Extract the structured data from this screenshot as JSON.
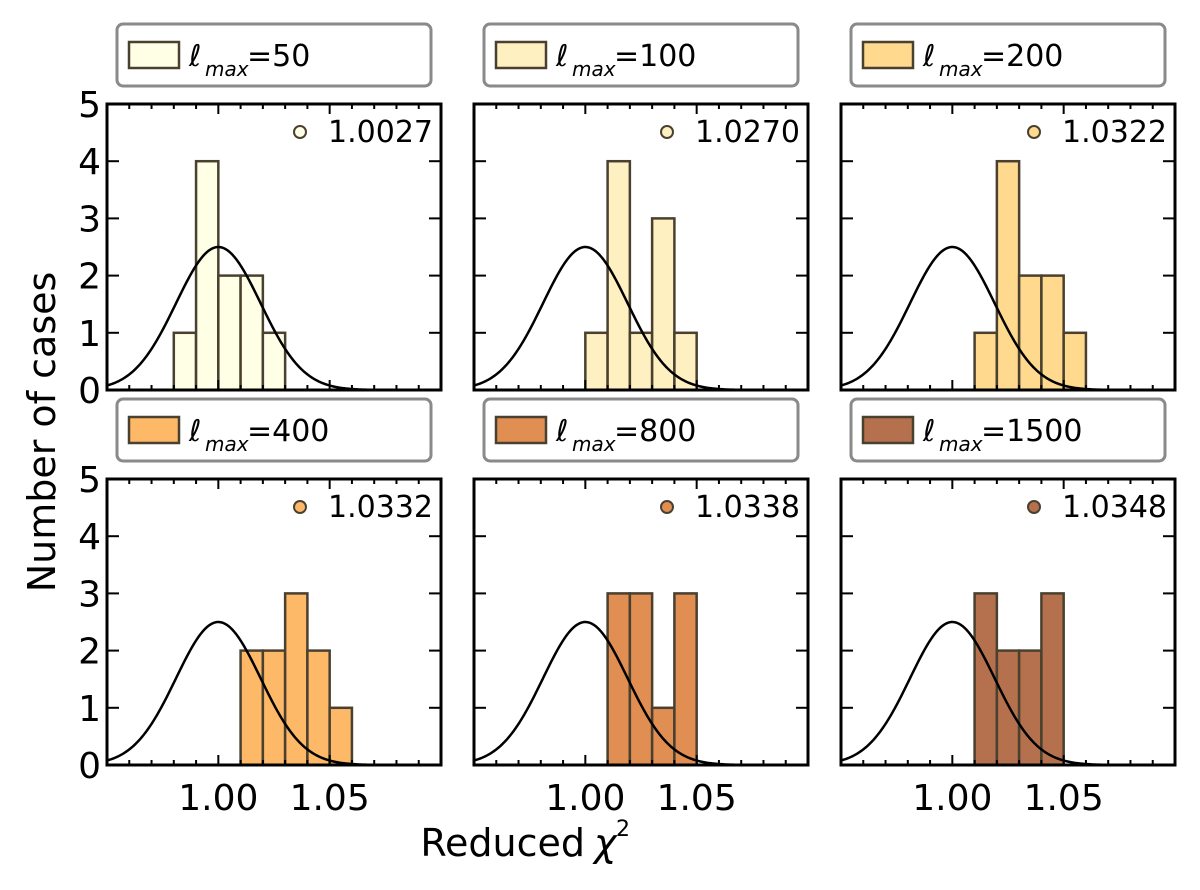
{
  "chart_data": {
    "type": "histogram-grid",
    "xlabel": "Reduced",
    "xlabel_symbol": "χ",
    "xlabel_power": "2",
    "ylabel": "Number of cases",
    "xlim": [
      0.95,
      1.1
    ],
    "ylim": [
      0,
      5
    ],
    "xticks": [
      "1.00",
      "1.05"
    ],
    "xtick_values": [
      1.0,
      1.05
    ],
    "yticks": [
      "0",
      "1",
      "2",
      "3",
      "4",
      "5"
    ],
    "bin_width": 0.01,
    "legend_symbol": "ℓ",
    "legend_sub": "max",
    "gaussian": {
      "mean": 1.0,
      "peak": 2.5,
      "sigma": 0.019
    },
    "panels": [
      {
        "label": "=50",
        "mean": "1.0027",
        "color": "#FFFFE5",
        "bins": [
          [
            0.98,
            1
          ],
          [
            0.99,
            4
          ],
          [
            1.0,
            2
          ],
          [
            1.01,
            2
          ],
          [
            1.02,
            1
          ]
        ]
      },
      {
        "label": "=100",
        "mean": "1.0270",
        "color": "#FEF0C0",
        "bins": [
          [
            1.0,
            1
          ],
          [
            1.01,
            4
          ],
          [
            1.02,
            1
          ],
          [
            1.03,
            3
          ],
          [
            1.04,
            1
          ]
        ]
      },
      {
        "label": "=200",
        "mean": "1.0322",
        "color": "#FED98E",
        "bins": [
          [
            1.01,
            1
          ],
          [
            1.02,
            4
          ],
          [
            1.03,
            2
          ],
          [
            1.04,
            2
          ],
          [
            1.05,
            1
          ]
        ]
      },
      {
        "label": "=400",
        "mean": "1.0332",
        "color": "#FDB967",
        "bins": [
          [
            1.01,
            2
          ],
          [
            1.02,
            2
          ],
          [
            1.03,
            3
          ],
          [
            1.04,
            2
          ],
          [
            1.05,
            1
          ]
        ]
      },
      {
        "label": "=800",
        "mean": "1.0338",
        "color": "#E08E52",
        "bins": [
          [
            1.01,
            3
          ],
          [
            1.02,
            3
          ],
          [
            1.03,
            1
          ],
          [
            1.04,
            3
          ]
        ]
      },
      {
        "label": "=1500",
        "mean": "1.0348",
        "color": "#B5714E",
        "bins": [
          [
            1.01,
            3
          ],
          [
            1.02,
            2
          ],
          [
            1.03,
            2
          ],
          [
            1.04,
            3
          ]
        ]
      }
    ]
  }
}
